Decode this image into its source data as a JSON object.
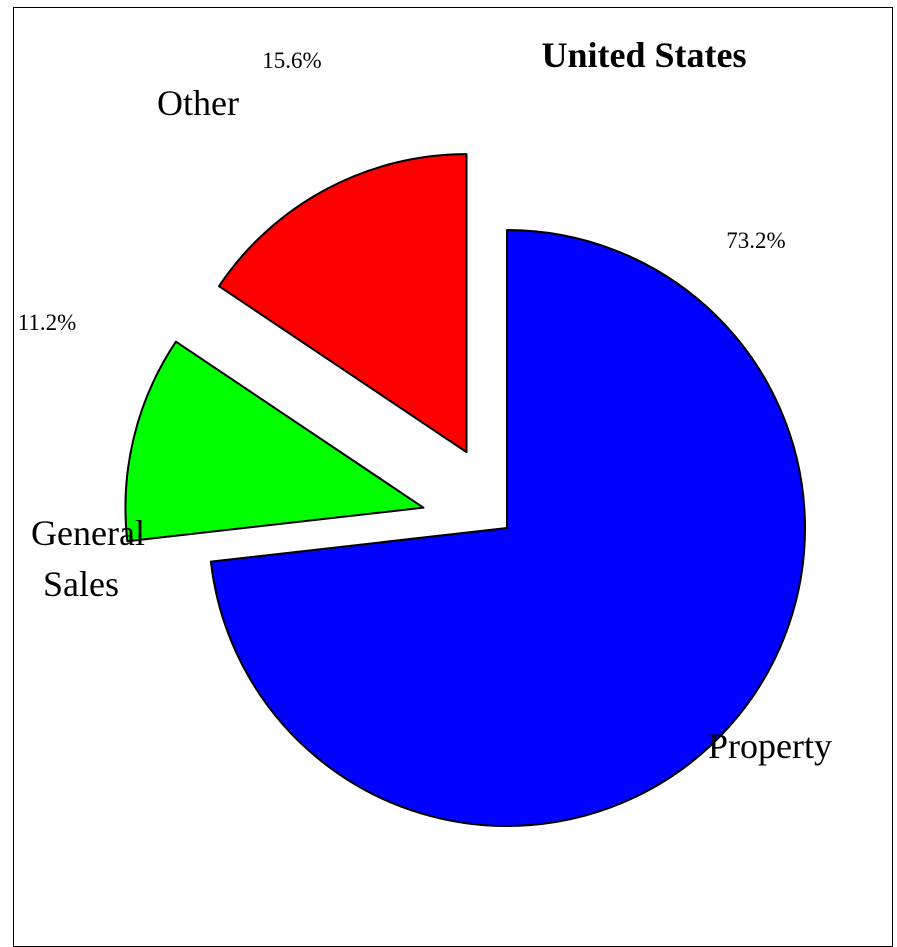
{
  "chart_data": {
    "type": "pie",
    "title": "United States",
    "slices": [
      {
        "label": "Property",
        "value": 73.2,
        "display": "73.2%",
        "color": "#0000ff",
        "exploded": false
      },
      {
        "label": "General Sales",
        "label_lines": [
          "General",
          "Sales"
        ],
        "value": 11.2,
        "display": "11.2%",
        "color": "#00ff00",
        "exploded": true
      },
      {
        "label": "Other",
        "value": 15.6,
        "display": "15.6%",
        "color": "#ff0000",
        "exploded": true
      }
    ],
    "legend": "none"
  }
}
